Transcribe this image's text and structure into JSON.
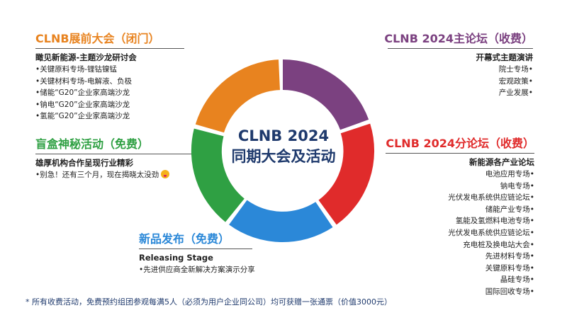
{
  "colors": {
    "orange": "#e8831f",
    "purple": "#7b4180",
    "red": "#e02b2b",
    "blue": "#2b88d8",
    "green": "#2fa043",
    "navy": "#1f3a6d"
  },
  "center": {
    "line1": "CLNB 2024",
    "line2": "同期大会及活动"
  },
  "preshow": {
    "title": "CLNB展前大会（闭门）",
    "subtitle": "瞰见新能源-主题沙龙研讨会",
    "items": [
      "•关键原料专场-锂钴镍锰",
      "•关键材料专场-电解液、负极",
      "•储能“G20”企业家高端沙龙",
      "•钠电“G20”企业家高端沙龙",
      "•氢能“G20”企业家高端沙龙"
    ]
  },
  "blindbox": {
    "title": "盲盒神秘活动（免费）",
    "subtitle": "雄厚机构合作呈现行业精彩",
    "item": "•别急！还有三个月，现在揭晓太没劲"
  },
  "newproduct": {
    "title": "新品发布（免费）",
    "subtitle": "Releasing Stage",
    "item": "•先进供应商全新解决方案演示分享"
  },
  "mainforum": {
    "title": "CLNB 2024主论坛（收费）",
    "subtitle": "开幕式主题演讲",
    "items": [
      "院士专场•",
      "宏观政策•",
      "产业发展•"
    ]
  },
  "subforum": {
    "title": "CLNB 2024分论坛（收费）",
    "subtitle": "新能源各产业论坛",
    "items": [
      "电池应用专场•",
      "钠电专场•",
      "光伏发电系统供应链论坛•",
      "储能产业专场•",
      "氢能及氢燃料电池专场•",
      "光伏发电系统供应链论坛•",
      "充电桩及换电站大会•",
      "先进材料专场•",
      "关键原料专场•",
      "晶硅专场•",
      "国际回收专场•"
    ]
  },
  "footnote": "* 所有收费活动，免费预约组团参观每满5人（必须为用户企业同公司）均可获赠一张通票（价值3000元）"
}
